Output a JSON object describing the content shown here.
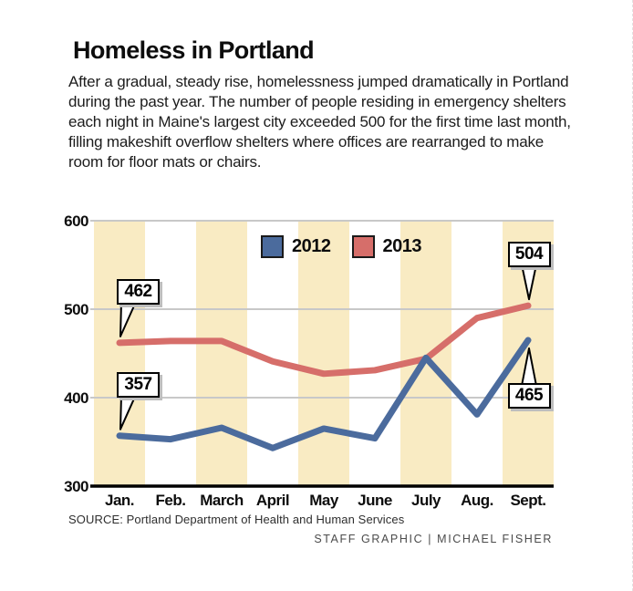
{
  "header": {
    "title": "Homeless in Portland",
    "description": "After a gradual, steady rise, homelessness jumped dramatically in Portland during the past year. The number of people residing in emergency shelters each night in Maine's largest city exceeded 500 for the first time last month, filling makeshift overflow shelters where offices are rearranged to make room for floor mats or chairs."
  },
  "chart_data": {
    "type": "line",
    "title": "Homeless in Portland",
    "xlabel": "",
    "ylabel": "",
    "categories": [
      "Jan.",
      "Feb.",
      "March",
      "April",
      "May",
      "June",
      "July",
      "Aug.",
      "Sept."
    ],
    "series": [
      {
        "name": "2012",
        "color": "#4b6b9d",
        "values": [
          357,
          353,
          366,
          343,
          365,
          354,
          445,
          381,
          465
        ]
      },
      {
        "name": "2013",
        "color": "#d66e6a",
        "values": [
          462,
          464,
          464,
          441,
          427,
          431,
          444,
          490,
          504
        ]
      }
    ],
    "ylim": [
      300,
      600
    ],
    "yticks": [
      300,
      400,
      500,
      600
    ],
    "grid": true,
    "gridline_color": "#c8c8c8",
    "band_color": "#f9ebc3",
    "legend_position": "top-center",
    "annotations": [
      {
        "label": "462",
        "series": "2013",
        "month_index": 0,
        "position": "above"
      },
      {
        "label": "357",
        "series": "2012",
        "month_index": 0,
        "position": "above"
      },
      {
        "label": "504",
        "series": "2013",
        "month_index": 8,
        "position": "above"
      },
      {
        "label": "465",
        "series": "2012",
        "month_index": 8,
        "position": "below"
      }
    ]
  },
  "footer": {
    "source": "SOURCE: Portland Department of Health and Human Services",
    "credit": "STAFF GRAPHIC | MICHAEL FISHER"
  }
}
